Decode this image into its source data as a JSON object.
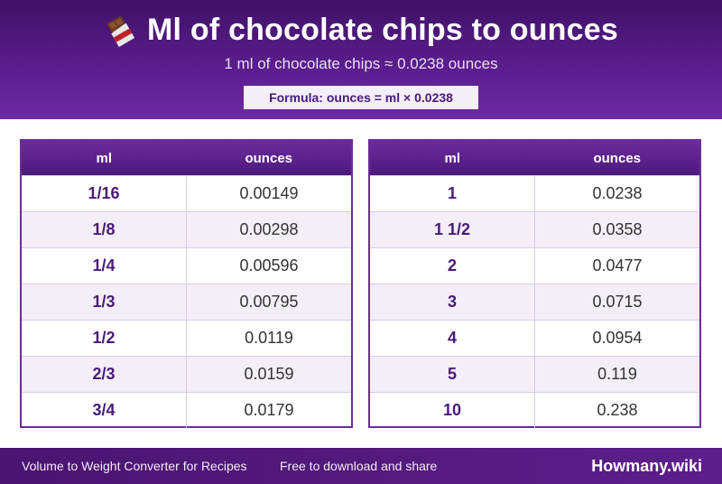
{
  "header": {
    "title": "Ml of chocolate chips to ounces",
    "subtitle": "1 ml of chocolate chips ≈ 0.0238 ounces",
    "formula": "Formula: ounces = ml × 0.0238",
    "icon": "chocolate-bar-icon"
  },
  "tables": {
    "left": {
      "headers": [
        "ml",
        "ounces"
      ],
      "rows": [
        {
          "ml": "1/16",
          "oz": "0.00149"
        },
        {
          "ml": "1/8",
          "oz": "0.00298"
        },
        {
          "ml": "1/4",
          "oz": "0.00596"
        },
        {
          "ml": "1/3",
          "oz": "0.00795"
        },
        {
          "ml": "1/2",
          "oz": "0.0119"
        },
        {
          "ml": "2/3",
          "oz": "0.0159"
        },
        {
          "ml": "3/4",
          "oz": "0.0179"
        }
      ]
    },
    "right": {
      "headers": [
        "ml",
        "ounces"
      ],
      "rows": [
        {
          "ml": "1",
          "oz": "0.0238"
        },
        {
          "ml": "1 1/2",
          "oz": "0.0358"
        },
        {
          "ml": "2",
          "oz": "0.0477"
        },
        {
          "ml": "3",
          "oz": "0.0715"
        },
        {
          "ml": "4",
          "oz": "0.0954"
        },
        {
          "ml": "5",
          "oz": "0.119"
        },
        {
          "ml": "10",
          "oz": "0.238"
        }
      ]
    }
  },
  "footer": {
    "left": "Volume to Weight Converter for Recipes",
    "mid": "Free to download and share",
    "brand": "Howmany.wiki"
  },
  "colors": {
    "primary": "#5a1d8c",
    "accent_text": "#4a1a78",
    "stripe": "#f3eef8"
  }
}
